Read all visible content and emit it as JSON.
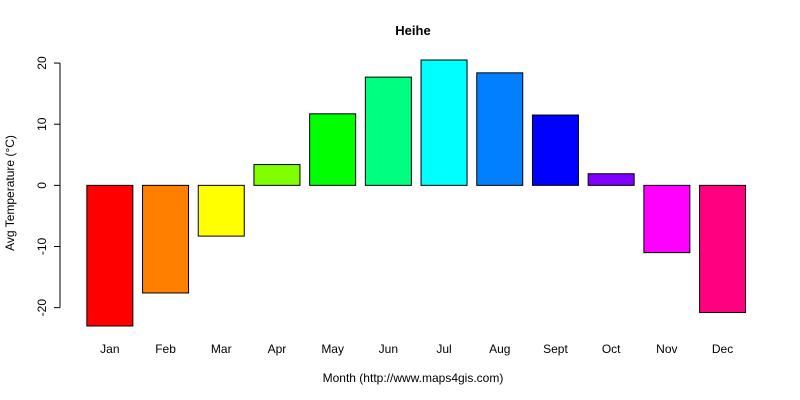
{
  "chart_data": {
    "type": "bar",
    "title": "Heihe",
    "xlabel": "Month (http://www.maps4gis.com)",
    "ylabel": "Avg Temperature (°C)",
    "categories": [
      "Jan",
      "Feb",
      "Mar",
      "Apr",
      "May",
      "Jun",
      "Jul",
      "Aug",
      "Sept",
      "Oct",
      "Nov",
      "Dec"
    ],
    "values": [
      -23.0,
      -17.6,
      -8.3,
      3.4,
      11.7,
      17.7,
      20.5,
      18.4,
      11.5,
      1.9,
      -11.0,
      -20.8
    ],
    "colors": [
      "#FF0000",
      "#FF8000",
      "#FFFF00",
      "#80FF00",
      "#00FF00",
      "#00FF80",
      "#00FFFF",
      "#0080FF",
      "#0000FF",
      "#8000FF",
      "#FF00FF",
      "#FF0080"
    ],
    "yticks": [
      -20,
      -10,
      0,
      10,
      20
    ],
    "ylim": [
      -23,
      20.5
    ],
    "grid": false,
    "legend": "none"
  }
}
